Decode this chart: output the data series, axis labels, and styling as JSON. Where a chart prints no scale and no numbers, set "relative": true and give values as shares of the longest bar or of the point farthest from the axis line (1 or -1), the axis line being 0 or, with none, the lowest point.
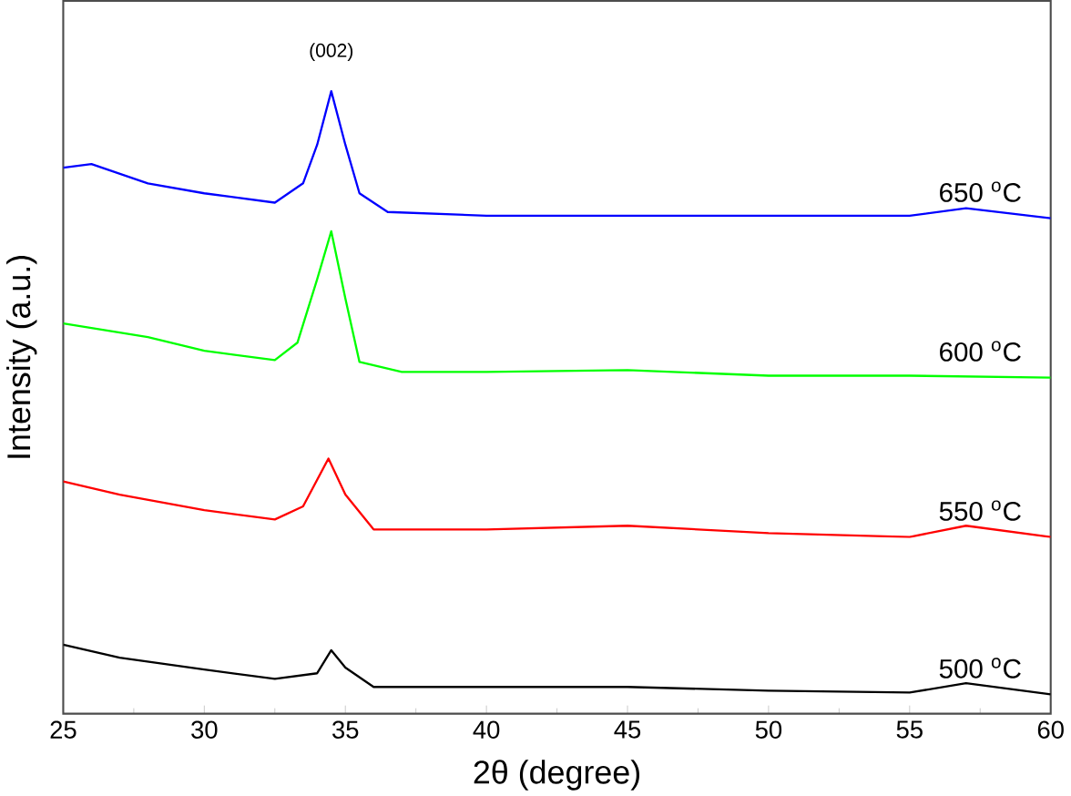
{
  "chart_data": {
    "type": "line",
    "relative": true,
    "xlabel": "2θ (degree)",
    "ylabel": "Intensity (a.u.)",
    "xlim": [
      25,
      60
    ],
    "xticks": [
      25,
      30,
      35,
      40,
      45,
      50,
      55,
      60
    ],
    "grid": false,
    "marker": "none",
    "annotations": [
      "(002)"
    ],
    "series": [
      {
        "name": "500 $^{o}$C",
        "color": "#000000",
        "x": [
          25,
          27,
          30,
          32.5,
          34,
          34.5,
          35,
          36,
          40,
          45,
          50,
          55,
          57,
          60
        ],
        "values": [
          0.111,
          0.09,
          0.071,
          0.056,
          0.065,
          0.102,
          0.074,
          0.043,
          0.043,
          0.043,
          0.037,
          0.034,
          0.049,
          0.031
        ]
      },
      {
        "name": "550 $^{o}$C",
        "color": "#ff0000",
        "x": [
          25,
          27,
          30,
          32.5,
          33.5,
          34.4,
          35,
          36,
          40,
          45,
          50,
          55,
          57,
          60
        ],
        "values": [
          0.373,
          0.352,
          0.327,
          0.312,
          0.333,
          0.41,
          0.352,
          0.296,
          0.296,
          0.302,
          0.29,
          0.284,
          0.302,
          0.284
        ]
      },
      {
        "name": "600 $^{o}$C",
        "color": "#00ff00",
        "x": [
          25,
          28,
          30,
          32.5,
          33.3,
          34,
          34.5,
          35,
          35.5,
          37,
          40,
          45,
          50,
          55,
          60
        ],
        "values": [
          0.627,
          0.605,
          0.583,
          0.568,
          0.596,
          0.698,
          0.775,
          0.667,
          0.565,
          0.549,
          0.549,
          0.552,
          0.543,
          0.543,
          0.54
        ]
      },
      {
        "name": "650 $^{o}$C",
        "color": "#0000ff",
        "x": [
          25,
          26,
          28,
          30,
          32.5,
          33.5,
          34,
          34.5,
          35,
          35.5,
          36.5,
          40,
          45,
          50,
          55,
          57,
          60
        ],
        "values": [
          0.877,
          0.883,
          0.852,
          0.836,
          0.821,
          0.852,
          0.914,
          1,
          0.914,
          0.836,
          0.806,
          0.8,
          0.8,
          0.8,
          0.8,
          0.812,
          0.796
        ]
      }
    ]
  }
}
